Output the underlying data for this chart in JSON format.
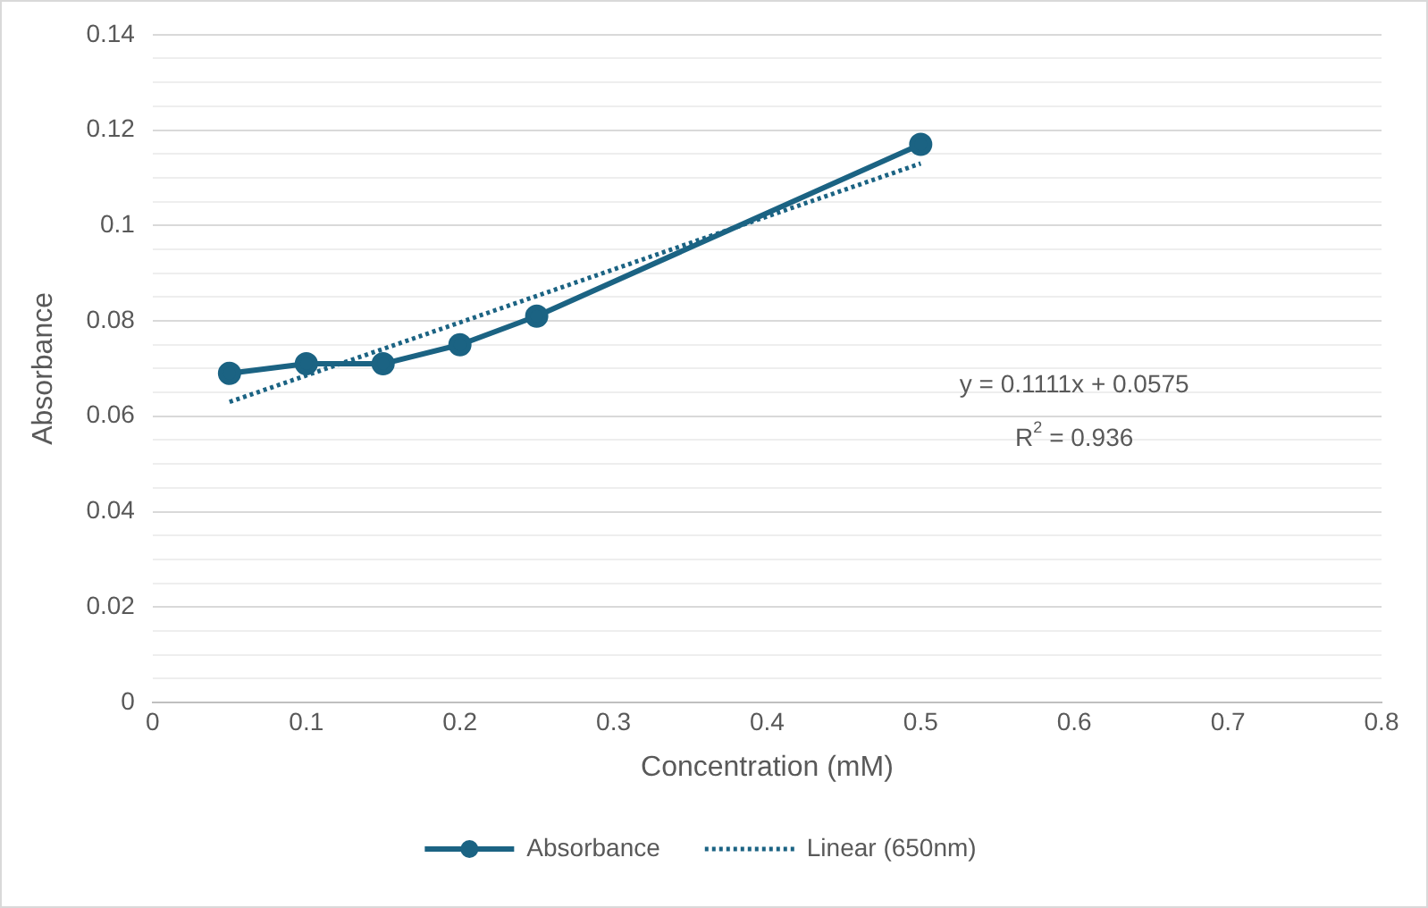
{
  "chart_data": {
    "type": "line",
    "xlabel": "Concentration (mM)",
    "ylabel": "Absorbance",
    "x": [
      0.05,
      0.1,
      0.15,
      0.2,
      0.25,
      0.5
    ],
    "series": [
      {
        "name": "Absorbance",
        "color": "#1b6383",
        "values": [
          0.069,
          0.071,
          0.071,
          0.075,
          0.081,
          0.117
        ],
        "marker": "circle",
        "line_style": "solid"
      },
      {
        "name": "Linear (650nm)",
        "type": "line",
        "color": "#1b6383",
        "x": [
          0.05,
          0.5
        ],
        "values": [
          0.063,
          0.113
        ],
        "marker": "none",
        "line_style": "dotted"
      }
    ],
    "xlim": [
      0,
      0.8
    ],
    "xticks": [
      0,
      0.1,
      0.2,
      0.3,
      0.4,
      0.5,
      0.6,
      0.7,
      0.8
    ],
    "ylim": [
      0,
      0.14
    ],
    "yticks": [
      0,
      {
        "value": 0.005,
        "label": null
      },
      {
        "value": 0.01,
        "label": null
      },
      {
        "value": 0.015,
        "label": null
      },
      0.02,
      {
        "value": 0.025,
        "label": null
      },
      {
        "value": 0.03,
        "label": null
      },
      {
        "value": 0.035,
        "label": null
      },
      0.04,
      {
        "value": 0.045,
        "label": null
      },
      {
        "value": 0.05,
        "label": null
      },
      {
        "value": 0.055,
        "label": null
      },
      0.06,
      {
        "value": 0.065,
        "label": null
      },
      {
        "value": 0.07,
        "label": null
      },
      {
        "value": 0.075,
        "label": null
      },
      0.08,
      {
        "value": 0.085,
        "label": null
      },
      {
        "value": 0.09,
        "label": null
      },
      {
        "value": 0.095,
        "label": null
      },
      0.1,
      {
        "value": 0.105,
        "label": null
      },
      {
        "value": 0.11,
        "label": null
      },
      {
        "value": 0.115,
        "label": null
      },
      0.12,
      {
        "value": 0.125,
        "label": null
      },
      {
        "value": 0.13,
        "label": null
      },
      {
        "value": 0.135,
        "label": null
      },
      0.14
    ],
    "grid": "y",
    "legend": "bottom",
    "annotations": [
      "y = 0.1111x + 0.0575",
      "R$^{2}$ = 0.936"
    ]
  }
}
